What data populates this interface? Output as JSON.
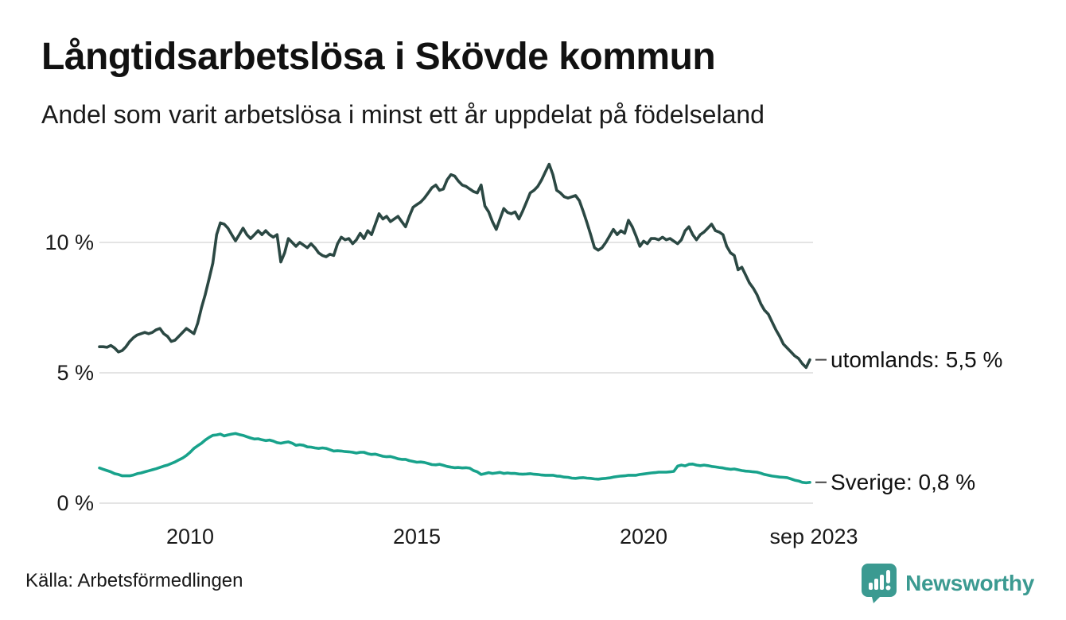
{
  "header": {
    "title": "Långtidsarbetslösa i Skövde kommun",
    "subtitle": "Andel som varit arbetslösa i minst ett år uppdelat på födelseland"
  },
  "footer": {
    "source": "Källa: Arbetsförmedlingen",
    "brand_name": "Newsworthy",
    "brand_color": "#3b9a91",
    "logo_icon": "speech-bubble-bar-chart-icon"
  },
  "chart_data": {
    "type": "line",
    "title": "Långtidsarbetslösa i Skövde kommun",
    "subtitle": "Andel som varit arbetslösa i minst ett år uppdelat på födelseland",
    "unit": "%",
    "x_start": "2008-01",
    "x_end": "2023-09",
    "grid": "horizontal",
    "background": "#ffffff",
    "gridline_color": "#e4e4e4",
    "x_axis": {
      "ticks": [
        {
          "label": "2010",
          "month_index": 24
        },
        {
          "label": "2015",
          "month_index": 84
        },
        {
          "label": "2020",
          "month_index": 144
        },
        {
          "label": "sep 2023",
          "month_index": 188
        }
      ]
    },
    "y_axis": {
      "ticks": [
        {
          "label": "0 %",
          "value": 0
        },
        {
          "label": "5 %",
          "value": 5
        },
        {
          "label": "10 %",
          "value": 10
        }
      ],
      "range": [
        0,
        13.6
      ]
    },
    "series": [
      {
        "name": "utomlands",
        "color": "#2b4843",
        "end_label": "utomlands: 5,5 %",
        "end_value_display": "5,5 %",
        "values": [
          6.0,
          6.0,
          5.98,
          6.05,
          5.95,
          5.8,
          5.85,
          6.0,
          6.2,
          6.35,
          6.45,
          6.5,
          6.55,
          6.5,
          6.55,
          6.65,
          6.7,
          6.5,
          6.4,
          6.2,
          6.25,
          6.4,
          6.55,
          6.7,
          6.6,
          6.5,
          6.9,
          7.5,
          8.0,
          8.6,
          9.2,
          10.3,
          10.75,
          10.7,
          10.55,
          10.3,
          10.06,
          10.3,
          10.55,
          10.3,
          10.15,
          10.3,
          10.45,
          10.3,
          10.45,
          10.3,
          10.2,
          10.3,
          9.25,
          9.6,
          10.15,
          10.0,
          9.85,
          10.0,
          9.9,
          9.8,
          9.95,
          9.8,
          9.6,
          9.5,
          9.45,
          9.55,
          9.5,
          9.95,
          10.2,
          10.1,
          10.15,
          9.95,
          10.1,
          10.35,
          10.15,
          10.45,
          10.3,
          10.7,
          11.1,
          10.9,
          11.0,
          10.8,
          10.9,
          11.0,
          10.8,
          10.6,
          11.0,
          11.35,
          11.45,
          11.55,
          11.7,
          11.9,
          12.1,
          12.2,
          12.0,
          12.05,
          12.4,
          12.6,
          12.55,
          12.35,
          12.2,
          12.15,
          12.05,
          11.95,
          11.9,
          12.2,
          11.4,
          11.17,
          10.8,
          10.5,
          10.9,
          11.3,
          11.15,
          11.1,
          11.17,
          10.9,
          11.2,
          11.55,
          11.9,
          12.0,
          12.15,
          12.4,
          12.7,
          13.0,
          12.6,
          12.0,
          11.9,
          11.75,
          11.7,
          11.75,
          11.8,
          11.6,
          11.2,
          10.76,
          10.3,
          9.8,
          9.7,
          9.8,
          10.0,
          10.25,
          10.5,
          10.3,
          10.45,
          10.35,
          10.85,
          10.6,
          10.25,
          9.85,
          10.05,
          9.95,
          10.15,
          10.15,
          10.1,
          10.2,
          10.1,
          10.15,
          10.05,
          9.95,
          10.1,
          10.45,
          10.6,
          10.3,
          10.1,
          10.3,
          10.4,
          10.55,
          10.7,
          10.45,
          10.4,
          10.3,
          9.85,
          9.6,
          9.5,
          8.95,
          9.05,
          8.75,
          8.45,
          8.25,
          8.0,
          7.65,
          7.4,
          7.25,
          6.95,
          6.65,
          6.4,
          6.1,
          5.95,
          5.8,
          5.65,
          5.55,
          5.35,
          5.2,
          5.5
        ]
      },
      {
        "name": "Sverige",
        "color": "#18a28b",
        "end_label": "Sverige: 0,8 %",
        "end_value_display": "0,8 %",
        "values": [
          1.35,
          1.3,
          1.25,
          1.2,
          1.13,
          1.1,
          1.05,
          1.05,
          1.05,
          1.08,
          1.13,
          1.16,
          1.2,
          1.24,
          1.28,
          1.32,
          1.37,
          1.42,
          1.46,
          1.52,
          1.58,
          1.66,
          1.73,
          1.83,
          1.95,
          2.1,
          2.2,
          2.3,
          2.42,
          2.52,
          2.6,
          2.62,
          2.65,
          2.58,
          2.62,
          2.65,
          2.67,
          2.63,
          2.6,
          2.55,
          2.5,
          2.46,
          2.47,
          2.43,
          2.4,
          2.42,
          2.38,
          2.32,
          2.3,
          2.33,
          2.35,
          2.3,
          2.22,
          2.24,
          2.22,
          2.16,
          2.15,
          2.12,
          2.1,
          2.12,
          2.1,
          2.05,
          2.0,
          2.01,
          2.0,
          1.98,
          1.97,
          1.95,
          1.92,
          1.95,
          1.95,
          1.9,
          1.87,
          1.88,
          1.84,
          1.8,
          1.78,
          1.79,
          1.75,
          1.7,
          1.68,
          1.68,
          1.63,
          1.6,
          1.57,
          1.58,
          1.56,
          1.52,
          1.48,
          1.47,
          1.49,
          1.45,
          1.41,
          1.38,
          1.36,
          1.37,
          1.35,
          1.36,
          1.34,
          1.25,
          1.2,
          1.1,
          1.13,
          1.17,
          1.14,
          1.16,
          1.18,
          1.14,
          1.16,
          1.14,
          1.14,
          1.12,
          1.11,
          1.12,
          1.13,
          1.11,
          1.1,
          1.08,
          1.07,
          1.07,
          1.07,
          1.04,
          1.03,
          1.0,
          0.99,
          0.96,
          0.95,
          0.97,
          0.98,
          0.96,
          0.95,
          0.93,
          0.92,
          0.94,
          0.95,
          0.97,
          1.0,
          1.02,
          1.04,
          1.05,
          1.07,
          1.07,
          1.07,
          1.1,
          1.12,
          1.14,
          1.16,
          1.17,
          1.19,
          1.19,
          1.19,
          1.2,
          1.22,
          1.42,
          1.46,
          1.43,
          1.49,
          1.5,
          1.46,
          1.44,
          1.46,
          1.44,
          1.41,
          1.39,
          1.37,
          1.35,
          1.32,
          1.3,
          1.31,
          1.28,
          1.25,
          1.23,
          1.22,
          1.2,
          1.19,
          1.15,
          1.1,
          1.07,
          1.04,
          1.02,
          1.0,
          0.99,
          0.98,
          0.93,
          0.88,
          0.85,
          0.8,
          0.78,
          0.8
        ]
      }
    ]
  }
}
